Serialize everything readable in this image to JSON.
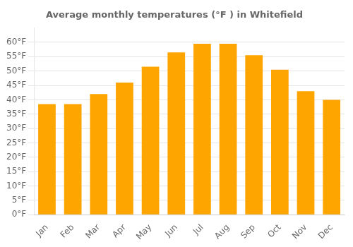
{
  "chart_data": {
    "type": "bar",
    "title": "Average monthly temperatures (°F ) in Whitefield",
    "categories": [
      "Jan",
      "Feb",
      "Mar",
      "Apr",
      "May",
      "Jun",
      "Jul",
      "Aug",
      "Sep",
      "Oct",
      "Nov",
      "Dec"
    ],
    "values": [
      38.5,
      38.5,
      42,
      46,
      51.5,
      56.5,
      59.5,
      59.5,
      55.5,
      50.5,
      43,
      40
    ],
    "color": "#FFA500",
    "ylim": [
      0,
      65
    ],
    "yticks": [
      {
        "value": 0,
        "label": "0°F"
      },
      {
        "value": 5,
        "label": "5°F"
      },
      {
        "value": 10,
        "label": "10°F"
      },
      {
        "value": 15,
        "label": "15°F"
      },
      {
        "value": 20,
        "label": "20°F"
      },
      {
        "value": 25,
        "label": "25°F"
      },
      {
        "value": 30,
        "label": "30°F"
      },
      {
        "value": 35,
        "label": "35°F"
      },
      {
        "value": 40,
        "label": "40°F"
      },
      {
        "value": 45,
        "label": "45°F"
      },
      {
        "value": 50,
        "label": "50°F"
      },
      {
        "value": 55,
        "label": "55°F"
      },
      {
        "value": 60,
        "label": "60°F"
      }
    ],
    "grid": true
  }
}
